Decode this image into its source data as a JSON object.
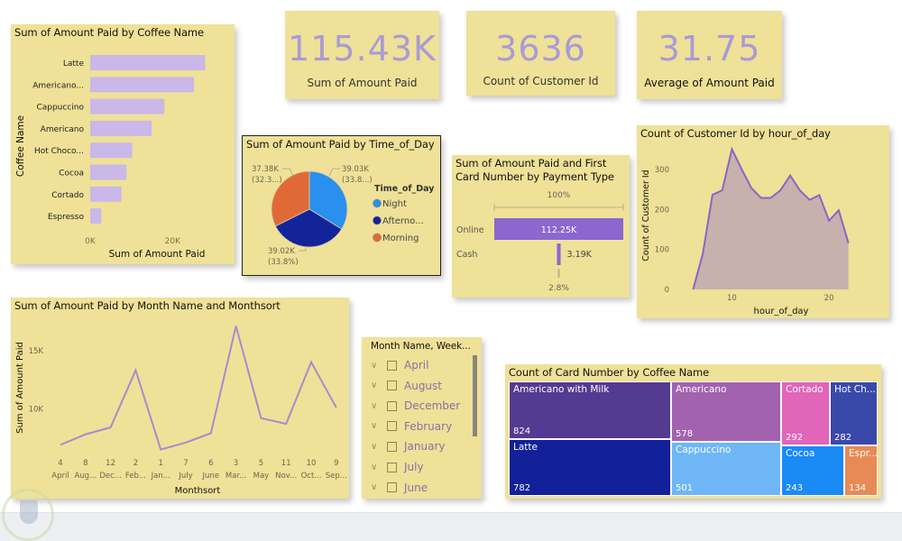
{
  "kpis": [
    {
      "value": "115.43K",
      "label": "Sum of Amount Paid"
    },
    {
      "value": "3636",
      "label": "Count of Customer Id"
    },
    {
      "value": "31.75",
      "label": "Average of Amount Paid"
    }
  ],
  "colors": {
    "card_bg": "#efe197",
    "bar": "#c9b8e8",
    "line": "#a58bd0",
    "area_fill": "#c6b1ac",
    "area_line": "#8c63c9",
    "kpi_text": "#a99bd6",
    "funnel": "#8b67cf"
  },
  "chart_data": [
    {
      "id": "bar_coffee",
      "type": "bar",
      "orientation": "horizontal",
      "title": "Sum of Amount Paid by Coffee Name",
      "xlabel": "Sum of Amount Paid",
      "ylabel": "Coffee Name",
      "categories": [
        "Latte",
        "Americano...",
        "Cappuccino",
        "Americano",
        "Hot Choco...",
        "Cocoa",
        "Cortado",
        "Espresso"
      ],
      "values": [
        27900,
        25200,
        18000,
        14900,
        10200,
        8800,
        7600,
        2700
      ],
      "xticks": [
        "0K",
        "20K"
      ],
      "xlim": [
        0,
        30000
      ]
    },
    {
      "id": "pie_time",
      "type": "pie",
      "title": "Sum of Amount Paid by Time_of_Day",
      "legend_title": "Time_of_Day",
      "legend_position": "right",
      "slices": [
        {
          "label": "Night",
          "legend": "Night",
          "value": 39030,
          "data_label": "39.03K",
          "pct_label": "(33.8...)",
          "color": "#2b8ff0"
        },
        {
          "label": "Afternoon",
          "legend": "Afterno...",
          "value": 39020,
          "data_label": "39.02K",
          "pct_label": "(33.8%)",
          "color": "#13249a"
        },
        {
          "label": "Morning",
          "legend": "Morning",
          "value": 37380,
          "data_label": "37.38K",
          "pct_label": "(32.3...)",
          "color": "#e06a35"
        }
      ]
    },
    {
      "id": "funnel_payment",
      "type": "bar",
      "subtype": "funnel",
      "title_line1": "Sum of Amount Paid and First",
      "title_line2": "Card Number by Payment Type",
      "top_label": "100%",
      "bottom_label": "2.8%",
      "categories": [
        "Online",
        "Cash"
      ],
      "values": [
        112250,
        3190
      ],
      "value_labels": [
        "112.25K",
        "3.19K"
      ]
    },
    {
      "id": "area_hour",
      "type": "area",
      "title": "Count of Customer Id by hour_of_day",
      "xlabel": "hour_of_day",
      "ylabel": "Count of Customer Id",
      "x": [
        6,
        7,
        8,
        9,
        10,
        11,
        12,
        13,
        14,
        15,
        16,
        17,
        18,
        19,
        20,
        21,
        22
      ],
      "values": [
        0,
        89,
        237,
        248,
        351,
        301,
        254,
        229,
        229,
        248,
        285,
        248,
        224,
        236,
        172,
        198,
        116
      ],
      "xticks": [
        "10",
        "20"
      ],
      "xtick_values": [
        10,
        20
      ],
      "yticks": [
        "0",
        "100",
        "200",
        "300"
      ],
      "ytick_values": [
        0,
        100,
        200,
        300
      ],
      "xlim": [
        5.5,
        22.5
      ],
      "ylim": [
        0,
        370
      ]
    },
    {
      "id": "line_month",
      "type": "line",
      "title": "Sum of Amount Paid by Month Name and Monthsort",
      "xlabel": "Monthsort",
      "ylabel": "Sum of Amount Paid",
      "categories_top": [
        "4",
        "8",
        "12",
        "2",
        "1",
        "7",
        "6",
        "3",
        "5",
        "11",
        "10",
        "9"
      ],
      "categories_bottom": [
        "April",
        "Aug...",
        "Dec...",
        "Feb...",
        "Jan...",
        "July",
        "June",
        "Mar...",
        "May",
        "Nov...",
        "Oct...",
        "Sep..."
      ],
      "values": [
        6900,
        7800,
        8400,
        13300,
        6500,
        7100,
        7900,
        17100,
        9200,
        8700,
        14000,
        10100
      ],
      "yticks": [
        "10K",
        "15K"
      ],
      "ytick_values": [
        10000,
        15000
      ],
      "ylim": [
        6000,
        18000
      ]
    },
    {
      "id": "treemap_card",
      "type": "treemap",
      "title": "Count of Card Number by Coffee Name",
      "items": [
        {
          "label": "Americano with Milk",
          "value": 824,
          "color": "#553a91"
        },
        {
          "label": "Latte",
          "value": 782,
          "color": "#12209a"
        },
        {
          "label": "Americano",
          "value": 578,
          "color": "#a262b0"
        },
        {
          "label": "Cappuccino",
          "value": 501,
          "color": "#6fb6f7"
        },
        {
          "label": "Cortado",
          "value": 292,
          "color": "#e165b9"
        },
        {
          "label": "Hot Ch...",
          "value": 282,
          "color": "#3a48aa"
        },
        {
          "label": "Cocoa",
          "value": 243,
          "color": "#1a8af5"
        },
        {
          "label": "Espr...",
          "value": 134,
          "color": "#e78a55"
        }
      ]
    }
  ],
  "slicer": {
    "title": "Month Name, Week...",
    "items": [
      "April",
      "August",
      "December",
      "February",
      "January",
      "July",
      "June"
    ]
  }
}
